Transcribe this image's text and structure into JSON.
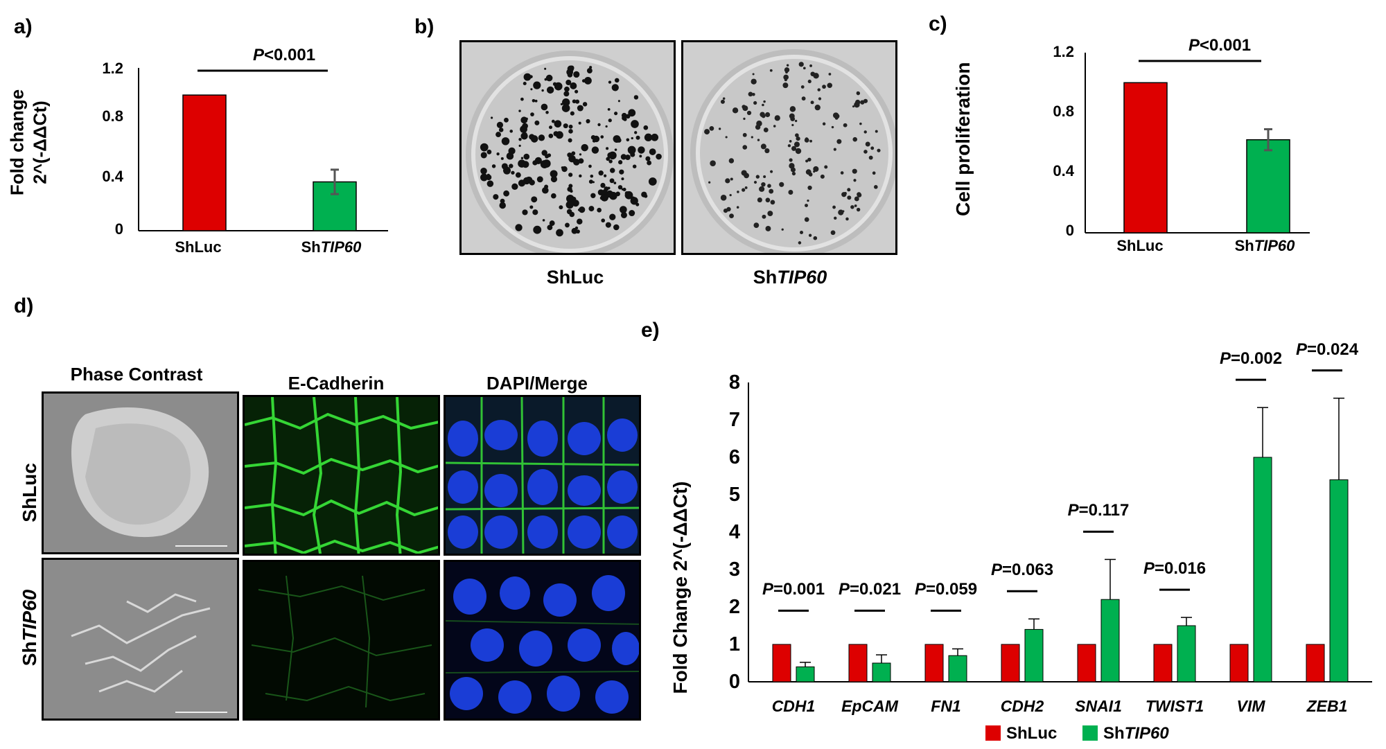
{
  "colors": {
    "shluc": "#dd0000",
    "shtip60": "#00b050",
    "axis": "#000000",
    "error": "#555555"
  },
  "panels": {
    "a": "a)",
    "b": "b)",
    "c": "c)",
    "d": "d)",
    "e": "e)"
  },
  "chart_data": [
    {
      "id": "a",
      "type": "bar",
      "categories": [
        "ShLuc",
        "ShTIP60"
      ],
      "values": [
        1.0,
        0.36
      ],
      "errors": [
        0.0,
        0.09
      ],
      "ylabel_line1": "Fold change",
      "ylabel_line2": "2^(-ΔΔCt)",
      "yticks": [
        "0",
        "0.4",
        "0.8",
        "1.2"
      ],
      "ylim": [
        0,
        1.2
      ],
      "annotation": {
        "p_label": "P",
        "p_rest": "<0.001"
      }
    },
    {
      "id": "c",
      "type": "bar",
      "categories": [
        "ShLuc",
        "ShTIP60"
      ],
      "values": [
        1.0,
        0.62
      ],
      "errors": [
        0.0,
        0.07
      ],
      "ylabel": "Cell proliferation",
      "yticks": [
        "0",
        "0.4",
        "0.8",
        "1.2"
      ],
      "ylim": [
        0,
        1.2
      ],
      "annotation": {
        "p_label": "P",
        "p_rest": "<0.001"
      }
    },
    {
      "id": "e",
      "type": "bar",
      "categories": [
        "CDH1",
        "EpCAM",
        "FN1",
        "CDH2",
        "SNAI1",
        "TWIST1",
        "VIM",
        "ZEB1"
      ],
      "series": [
        {
          "name": "ShLuc",
          "values": [
            1,
            1,
            1,
            1,
            1,
            1,
            1,
            1
          ],
          "errors": [
            0,
            0,
            0,
            0,
            0,
            0,
            0,
            0
          ]
        },
        {
          "name": "ShTIP60",
          "values": [
            0.4,
            0.5,
            0.7,
            1.4,
            2.2,
            1.5,
            6.0,
            5.4
          ],
          "errors": [
            0.12,
            0.22,
            0.18,
            0.28,
            1.07,
            0.22,
            1.33,
            2.18
          ]
        }
      ],
      "pvalues": [
        "=0.001",
        "=0.021",
        "=0.059",
        "=0.063",
        "=0.117",
        "=0.016",
        "=0.002",
        "=0.024"
      ],
      "p_letter": "P",
      "ylabel": "Fold Change  2^(-ΔΔCt)",
      "yticks": [
        "0",
        "1",
        "2",
        "3",
        "4",
        "5",
        "6",
        "7",
        "8"
      ],
      "ylim": [
        0,
        8
      ],
      "legend": {
        "placement": "bottom",
        "shluc": "ShLuc",
        "shtip60_prefix": "Sh",
        "shtip60_gene": "TIP60"
      }
    }
  ],
  "labels": {
    "shluc": "ShLuc",
    "sh": "Sh",
    "tip60": "TIP60",
    "phase_contrast": "Phase Contrast",
    "ecadherin": "E-Cadherin",
    "dapi_merge": "DAPI/Merge"
  }
}
